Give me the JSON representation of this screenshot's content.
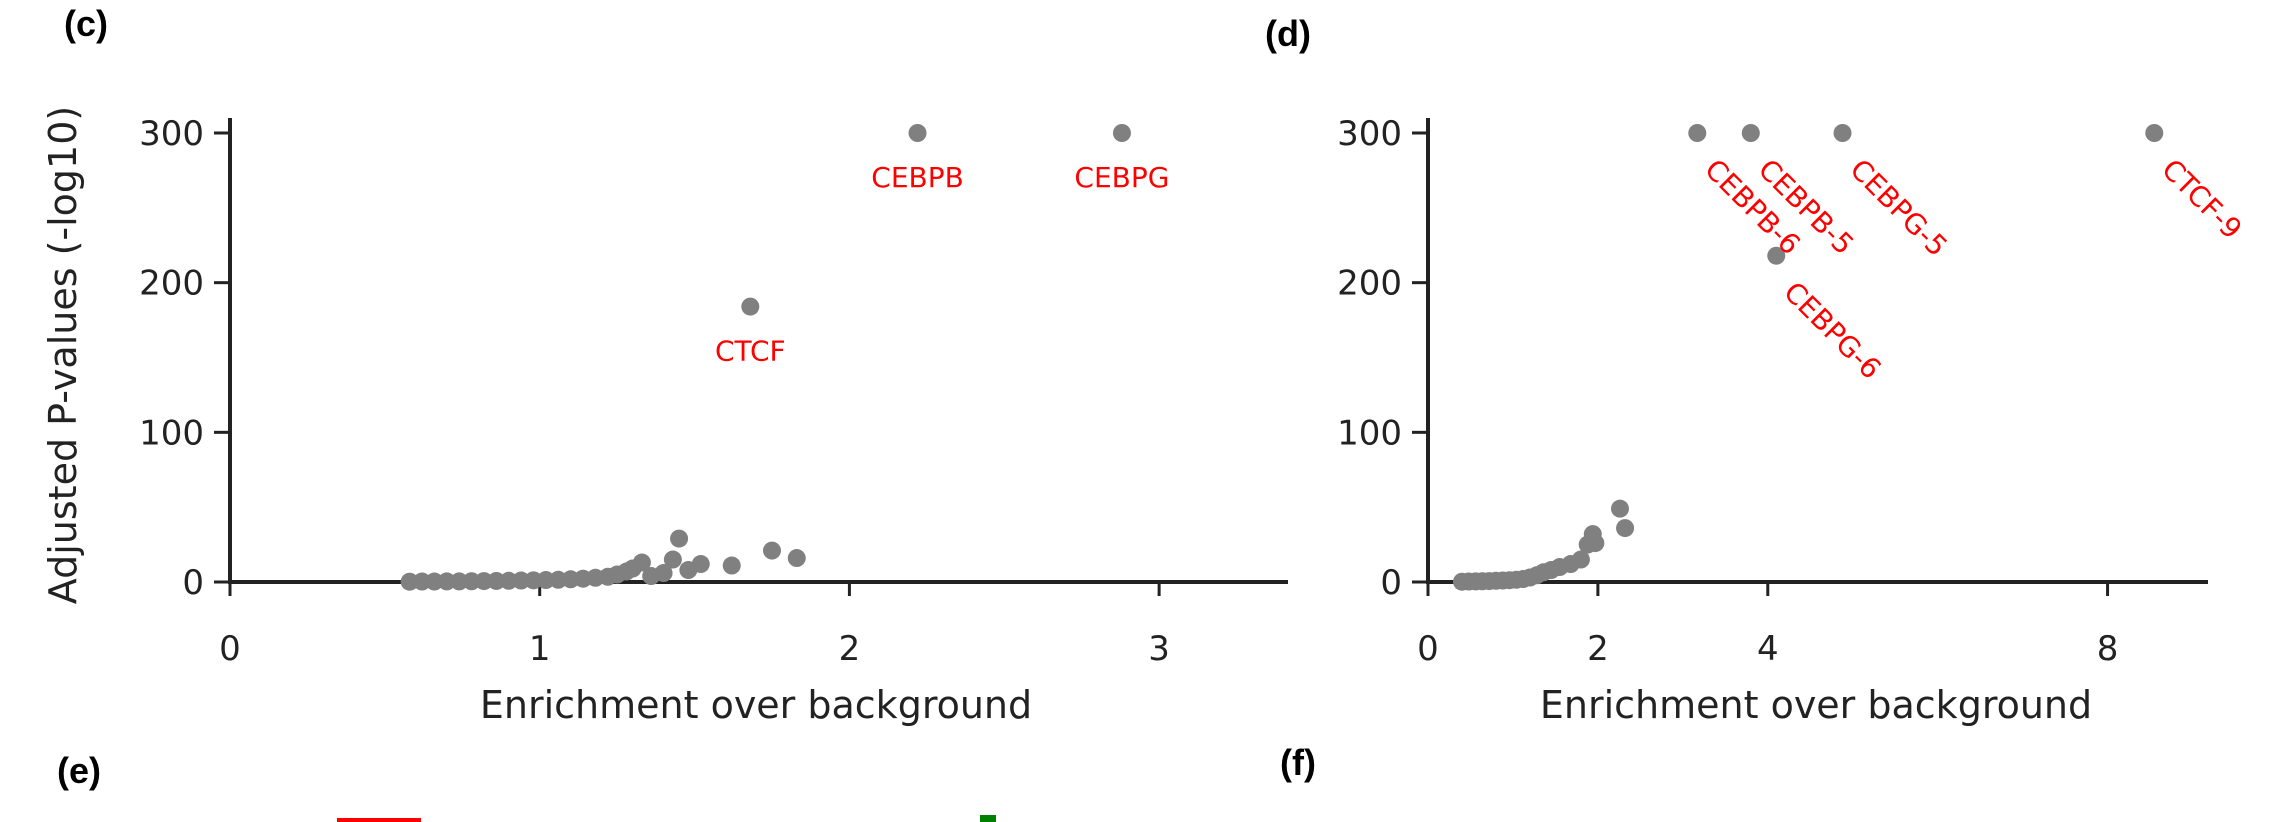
{
  "panels": {
    "c": "(c)",
    "d": "(d)",
    "e": "(e)",
    "f": "(f)"
  },
  "chart_data": [
    {
      "type": "scatter",
      "panel": "(c)",
      "xlabel": "Enrichment over background",
      "ylabel": "Adjusted P-values (-log10)",
      "xlim": [
        0,
        3.4
      ],
      "ylim": [
        0,
        300
      ],
      "xticks": [
        0,
        1,
        2,
        3
      ],
      "yticks": [
        0,
        100,
        200,
        300
      ],
      "marker_color": "#808080",
      "annotation_color": "#ff0000",
      "points": [
        {
          "x": 0.58,
          "y": 0.2
        },
        {
          "x": 0.62,
          "y": 0.3
        },
        {
          "x": 0.66,
          "y": 0.3
        },
        {
          "x": 0.7,
          "y": 0.4
        },
        {
          "x": 0.74,
          "y": 0.4
        },
        {
          "x": 0.78,
          "y": 0.5
        },
        {
          "x": 0.82,
          "y": 0.6
        },
        {
          "x": 0.86,
          "y": 0.7
        },
        {
          "x": 0.9,
          "y": 0.8
        },
        {
          "x": 0.94,
          "y": 1.0
        },
        {
          "x": 0.98,
          "y": 1.1
        },
        {
          "x": 1.02,
          "y": 1.3
        },
        {
          "x": 1.06,
          "y": 1.5
        },
        {
          "x": 1.1,
          "y": 1.8
        },
        {
          "x": 1.14,
          "y": 2.2
        },
        {
          "x": 1.18,
          "y": 2.8
        },
        {
          "x": 1.22,
          "y": 3.5
        },
        {
          "x": 1.25,
          "y": 5.0
        },
        {
          "x": 1.28,
          "y": 7.0
        },
        {
          "x": 1.3,
          "y": 9.0
        },
        {
          "x": 1.33,
          "y": 13.0
        },
        {
          "x": 1.36,
          "y": 4.0
        },
        {
          "x": 1.4,
          "y": 6.0
        },
        {
          "x": 1.43,
          "y": 15.0
        },
        {
          "x": 1.45,
          "y": 29.0
        },
        {
          "x": 1.48,
          "y": 8.0
        },
        {
          "x": 1.52,
          "y": 12.0
        },
        {
          "x": 1.62,
          "y": 11.0
        },
        {
          "x": 1.68,
          "y": 184.0,
          "label": "CTCF"
        },
        {
          "x": 1.75,
          "y": 21.0
        },
        {
          "x": 1.83,
          "y": 16.0
        },
        {
          "x": 2.22,
          "y": 300.0,
          "label": "CEBPB"
        },
        {
          "x": 2.88,
          "y": 300.0,
          "label": "CEBPG"
        }
      ]
    },
    {
      "type": "scatter",
      "panel": "(d)",
      "xlabel": "Enrichment over background",
      "ylabel": "",
      "xlim": [
        0,
        9.1
      ],
      "ylim": [
        0,
        300
      ],
      "xticks": [
        0,
        2,
        4,
        8
      ],
      "yticks": [
        0,
        100,
        200,
        300
      ],
      "marker_color": "#808080",
      "annotation_color": "#ff0000",
      "points": [
        {
          "x": 0.4,
          "y": 0.2
        },
        {
          "x": 0.48,
          "y": 0.3
        },
        {
          "x": 0.56,
          "y": 0.4
        },
        {
          "x": 0.64,
          "y": 0.5
        },
        {
          "x": 0.72,
          "y": 0.6
        },
        {
          "x": 0.8,
          "y": 0.8
        },
        {
          "x": 0.88,
          "y": 1.0
        },
        {
          "x": 0.96,
          "y": 1.2
        },
        {
          "x": 1.04,
          "y": 1.5
        },
        {
          "x": 1.12,
          "y": 2.0
        },
        {
          "x": 1.2,
          "y": 3.0
        },
        {
          "x": 1.28,
          "y": 4.5
        },
        {
          "x": 1.36,
          "y": 6.5
        },
        {
          "x": 1.45,
          "y": 8.0
        },
        {
          "x": 1.55,
          "y": 10.0
        },
        {
          "x": 1.68,
          "y": 12.0
        },
        {
          "x": 1.8,
          "y": 15.0
        },
        {
          "x": 1.88,
          "y": 25.0
        },
        {
          "x": 1.94,
          "y": 32.0
        },
        {
          "x": 1.97,
          "y": 26.0
        },
        {
          "x": 2.26,
          "y": 49.0
        },
        {
          "x": 2.32,
          "y": 36.0
        },
        {
          "x": 3.17,
          "y": 300.0,
          "label": "CEBPB-6"
        },
        {
          "x": 3.8,
          "y": 300.0,
          "label": "CEBPB-5"
        },
        {
          "x": 4.1,
          "y": 218.0,
          "label": "CEBPG-6"
        },
        {
          "x": 4.88,
          "y": 300.0,
          "label": "CEBPG-5"
        },
        {
          "x": 8.55,
          "y": 300.0,
          "label": "CTCF-9"
        }
      ]
    }
  ]
}
